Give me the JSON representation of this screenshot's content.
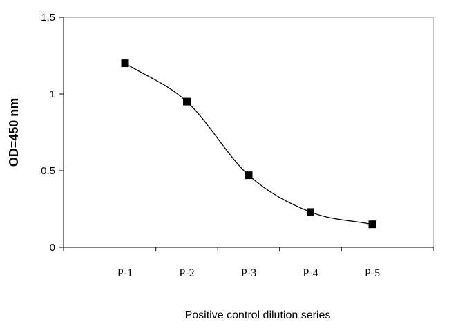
{
  "chart_data": {
    "type": "line",
    "categories": [
      "P-1",
      "P-2",
      "P-3",
      "P-4",
      "P-5"
    ],
    "series": [
      {
        "values": [
          1.2,
          0.95,
          0.47,
          0.23,
          0.15
        ]
      }
    ],
    "xlabel": "Positive control dilution series",
    "ylabel": "OD=450 nm",
    "ylim": [
      0,
      1.5
    ],
    "yticks": [
      {
        "value": 0,
        "label": "0"
      },
      {
        "value": 0.5,
        "label": "0.5"
      },
      {
        "value": 1,
        "label": "1"
      },
      {
        "value": 1.5,
        "label": "1.5"
      }
    ],
    "marker": "square",
    "smooth": true,
    "grid": false,
    "legend": "none",
    "colors": {
      "line": "#000000",
      "axis": "#000000",
      "marker": "#000000"
    }
  }
}
